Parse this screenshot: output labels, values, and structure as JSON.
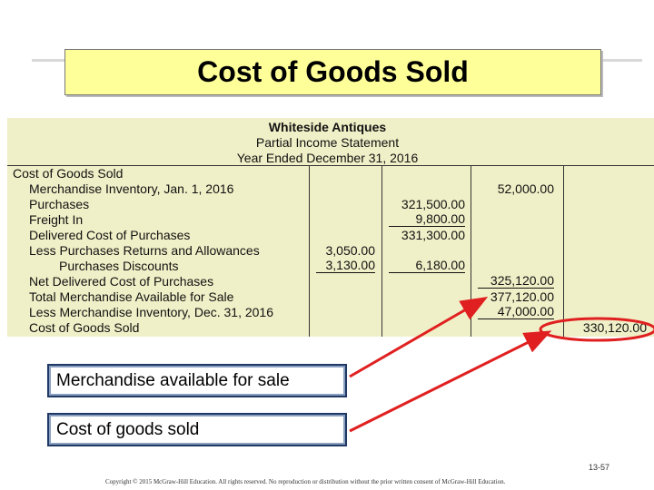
{
  "title": "Cost of Goods Sold",
  "statement": {
    "company": "Whiteside Antiques",
    "report_name": "Partial Income Statement",
    "period": "Year Ended December 31, 2016",
    "rows": [
      {
        "label": "Cost of Goods Sold",
        "c1": "",
        "c2": "",
        "c3": "",
        "c4": ""
      },
      {
        "label": "Merchandise Inventory, Jan. 1, 2016",
        "c1": "",
        "c2": "",
        "c3": "52,000.00",
        "c4": ""
      },
      {
        "label": "Purchases",
        "c1": "",
        "c2": "321,500.00",
        "c3": "",
        "c4": ""
      },
      {
        "label": "Freight In",
        "c1": "",
        "c2": "9,800.00",
        "c3": "",
        "c4": ""
      },
      {
        "label": "Delivered Cost of Purchases",
        "c1": "",
        "c2": "331,300.00",
        "c3": "",
        "c4": ""
      },
      {
        "label": "Less Purchases Returns and Allowances",
        "c1": "3,050.00",
        "c2": "",
        "c3": "",
        "c4": ""
      },
      {
        "label": "Purchases Discounts",
        "c1": "3,130.00",
        "c2": "6,180.00",
        "c3": "",
        "c4": ""
      },
      {
        "label": "Net Delivered Cost of Purchases",
        "c1": "",
        "c2": "",
        "c3": "325,120.00",
        "c4": ""
      },
      {
        "label": "Total Merchandise Available for Sale",
        "c1": "",
        "c2": "",
        "c3": "377,120.00",
        "c4": ""
      },
      {
        "label": "Less Merchandise Inventory, Dec. 31, 2016",
        "c1": "",
        "c2": "",
        "c3": "47,000.00",
        "c4": ""
      },
      {
        "label": "Cost of Goods Sold",
        "c1": "",
        "c2": "",
        "c3": "",
        "c4": "330,120.00"
      }
    ]
  },
  "callouts": {
    "merch_available": "Merchandise available for sale",
    "cogs": "Cost of goods sold"
  },
  "accent_colors": {
    "arrow": "#e02020",
    "callout_border": "#1f3864",
    "title_bg": "#ffff99",
    "table_bg": "#f0f0c8"
  },
  "page_number": "13-57",
  "copyright": "Copyright © 2015 McGraw-Hill Education. All rights reserved. No reproduction or distribution without the prior written consent of McGraw-Hill Education."
}
